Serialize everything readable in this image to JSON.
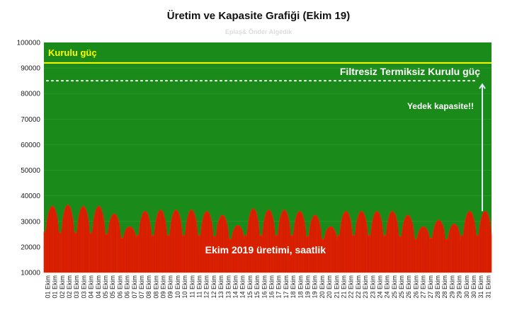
{
  "chart_data": {
    "type": "area",
    "title": "Üretim ve Kapasite Grafiği (Ekim 19)",
    "subtitle": "Epiaş& Önder Algedik",
    "xlabel": "",
    "ylabel": "",
    "ylim": [
      10000,
      100000
    ],
    "yticks": [
      "10000",
      "20000",
      "30000",
      "40000",
      "50000",
      "60000",
      "70000",
      "80000",
      "90000",
      "100000"
    ],
    "xticks": [
      "01 Ekim",
      "01 Ekim",
      "02 Ekim",
      "02 Ekim",
      "03 Ekim",
      "03 Ekim",
      "04 Ekim",
      "04 Ekim",
      "05 Ekim",
      "05 Ekim",
      "06 Ekim",
      "06 Ekim",
      "07 Ekim",
      "07 Ekim",
      "08 Ekim",
      "08 Ekim",
      "09 Ekim",
      "09 Ekim",
      "10 Ekim",
      "10 Ekim",
      "11 Ekim",
      "11 Ekim",
      "12 Ekim",
      "12 Ekim",
      "13 Ekim",
      "13 Ekim",
      "14 Ekim",
      "14 Ekim",
      "15 Ekim",
      "15 Ekim",
      "16 Ekim",
      "16 Ekim",
      "17 Ekim",
      "17 Ekim",
      "18 Ekim",
      "18 Ekim",
      "19 Ekim",
      "19 Ekim",
      "20 Ekim",
      "20 Ekim",
      "21 Ekim",
      "21 Ekim",
      "22 Ekim",
      "22 Ekim",
      "23 Ekim",
      "23 Ekim",
      "24 Ekim",
      "24 Ekim",
      "25 Ekim",
      "25 Ekim",
      "26 Ekim",
      "26 Ekim",
      "27 Ekim",
      "27 Ekim",
      "28 Ekim",
      "28 Ekim",
      "29 Ekim",
      "29 Ekim",
      "30 Ekim",
      "30 Ekim",
      "31 Ekim",
      "31 Ekim"
    ],
    "series": [
      {
        "name": "Ekim 2019 üretimi, saatlik",
        "color": "#dd2200",
        "daily_peaks": [
          36000,
          36500,
          36000,
          36000,
          33000,
          28000,
          34000,
          34500,
          34500,
          34500,
          34000,
          32500,
          28500,
          35000,
          34500,
          34500,
          34000,
          32500,
          28000,
          34000,
          34000,
          34000,
          34000,
          32500,
          28000,
          30500,
          29000,
          34000,
          34000
        ],
        "daily_troughs": [
          26000,
          25500,
          25500,
          25500,
          25000,
          23500,
          24500,
          24500,
          24500,
          24500,
          24500,
          24000,
          23000,
          24500,
          24500,
          24500,
          24500,
          24000,
          23000,
          24500,
          24500,
          24500,
          24500,
          24000,
          23000,
          23500,
          23000,
          24500,
          24500
        ]
      }
    ],
    "reference_lines": [
      {
        "label": "Kurulu güç",
        "value": 92000,
        "style": "solid",
        "color": "#ffff00"
      },
      {
        "label": "Filtresiz Termiksiz Kurulu güç",
        "value": 85000,
        "style": "dotted",
        "color": "#ffffff"
      }
    ],
    "annotations": [
      {
        "text": "Yedek kapasite!!"
      },
      {
        "text": "Ekim 2019 üretimi, saatlik"
      }
    ],
    "colors": {
      "plot_background": "#1a8a1a",
      "production": "#dd2200",
      "installed": "#ffff00",
      "annotation": "#ffffff"
    }
  }
}
